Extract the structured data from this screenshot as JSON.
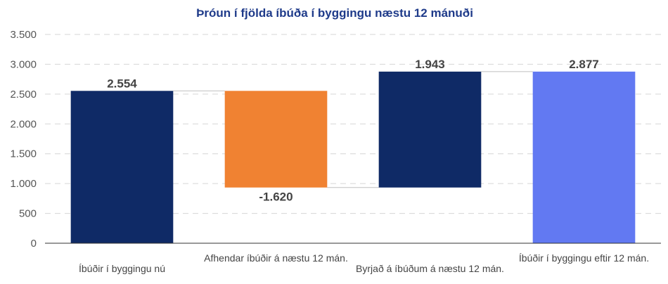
{
  "chart_data": {
    "type": "bar",
    "subtype": "waterfall",
    "title": "Þróun í fjölda íbúða í byggingu næstu 12 mánuði",
    "categories": [
      "Íbúðir í byggingu nú",
      "Afhendar íbúðir á næstu 12 mán.",
      "Byrjað á íbúðum á næstu 12 mán.",
      "Íbúðir í byggingu eftir 12 mán."
    ],
    "values": [
      2554,
      -1620,
      1943,
      2877
    ],
    "value_labels": [
      "2.554",
      "-1.620",
      "1.943",
      "2.877"
    ],
    "bar_kinds": [
      "total",
      "delta",
      "delta",
      "total"
    ],
    "ylim": [
      0,
      3500
    ],
    "yticks": [
      0,
      500,
      1000,
      1500,
      2000,
      2500,
      3000,
      3500
    ],
    "ytick_labels": [
      "0",
      "500",
      "1.000",
      "1.500",
      "2.000",
      "2.500",
      "3.000",
      "3.500"
    ],
    "grid": true,
    "legend": "none",
    "colors": [
      "#0f2a66",
      "#f08232",
      "#0f2a66",
      "#6279f2"
    ]
  }
}
